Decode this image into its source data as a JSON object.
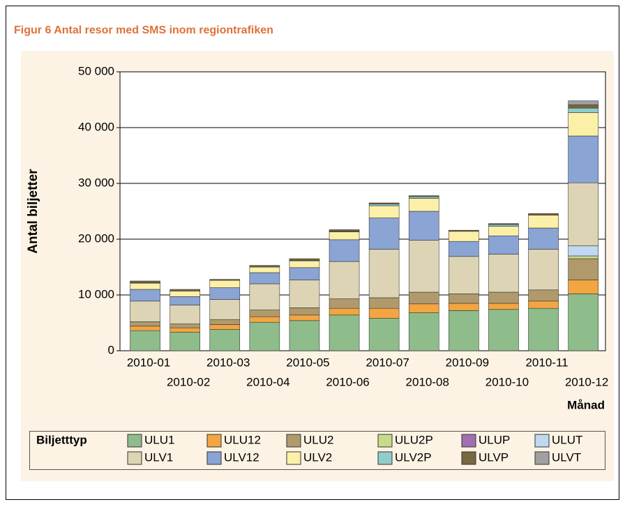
{
  "chart_data": {
    "type": "stacked_bar",
    "title": "Figur 6  Antal resor med SMS inom regiontrafiken",
    "x_label": "Månad",
    "y_label": "Antal biljetter",
    "legend_title": "Biljetttyp",
    "categories": [
      "2010-01",
      "2010-02",
      "2010-03",
      "2010-04",
      "2010-05",
      "2010-06",
      "2010-07",
      "2010-08",
      "2010-09",
      "2010-10",
      "2010-11",
      "2010-12"
    ],
    "series": [
      {
        "name": "ULU1",
        "color": "#8fbc8b",
        "values": [
          3600,
          3300,
          3800,
          5100,
          5400,
          6400,
          5800,
          6800,
          7200,
          7400,
          7600,
          10200
        ]
      },
      {
        "name": "ULU12",
        "color": "#f2a541",
        "values": [
          800,
          800,
          900,
          1000,
          1000,
          1200,
          1800,
          1600,
          1300,
          1100,
          1300,
          2500
        ]
      },
      {
        "name": "ULU2",
        "color": "#b09a6c",
        "values": [
          800,
          700,
          900,
          1200,
          1300,
          1700,
          1900,
          2100,
          1700,
          2000,
          2000,
          3800
        ]
      },
      {
        "name": "ULU2P",
        "color": "#c8dc88",
        "values": [
          0,
          0,
          0,
          0,
          0,
          0,
          0,
          0,
          0,
          0,
          0,
          500
        ]
      },
      {
        "name": "ULUP",
        "color": "#a070b0",
        "values": [
          0,
          0,
          0,
          0,
          0,
          0,
          0,
          0,
          0,
          0,
          0,
          0
        ]
      },
      {
        "name": "ULUT",
        "color": "#c0d8f0",
        "values": [
          0,
          0,
          0,
          0,
          0,
          0,
          0,
          0,
          0,
          0,
          0,
          1800
        ]
      },
      {
        "name": "ULV1",
        "color": "#dcd4b4",
        "values": [
          3700,
          3400,
          3600,
          4700,
          5000,
          6700,
          8700,
          9300,
          6700,
          6800,
          7300,
          11300
        ]
      },
      {
        "name": "ULV12",
        "color": "#8aa4d4",
        "values": [
          2100,
          1500,
          2100,
          2000,
          2200,
          3900,
          5600,
          5200,
          2700,
          3300,
          3800,
          8400
        ]
      },
      {
        "name": "ULV2",
        "color": "#fcf0a8",
        "values": [
          1100,
          1000,
          1300,
          1000,
          1200,
          1400,
          2200,
          2300,
          1800,
          1700,
          2300,
          4200
        ]
      },
      {
        "name": "ULV2P",
        "color": "#90cccc",
        "values": [
          100,
          0,
          0,
          0,
          100,
          100,
          300,
          300,
          0,
          300,
          0,
          800
        ]
      },
      {
        "name": "ULVP",
        "color": "#786840",
        "values": [
          300,
          300,
          200,
          300,
          300,
          300,
          200,
          200,
          200,
          200,
          300,
          600
        ]
      },
      {
        "name": "ULVT",
        "color": "#a0a0a0",
        "values": [
          0,
          0,
          0,
          0,
          0,
          0,
          0,
          0,
          0,
          0,
          0,
          700
        ]
      }
    ],
    "ylim": [
      0,
      50000
    ],
    "yticks": [
      0,
      {
        "value": 10000,
        "label": "10 000"
      },
      {
        "value": 20000,
        "label": "20 000"
      },
      {
        "value": 30000,
        "label": "30 000"
      },
      {
        "value": 40000,
        "label": "40 000"
      },
      {
        "value": 50000,
        "label": "50 000"
      }
    ],
    "grid": true
  }
}
